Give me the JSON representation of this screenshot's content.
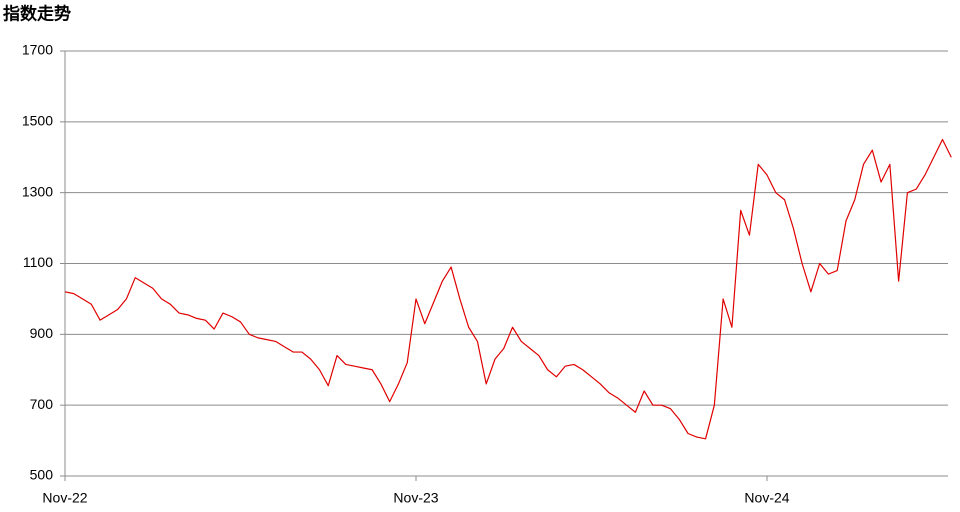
{
  "chart_data": {
    "type": "line",
    "title": "指数走势",
    "categories": [
      "Nov-22",
      null,
      null,
      null,
      null,
      null,
      null,
      null,
      null,
      null,
      null,
      null,
      null,
      null,
      null,
      null,
      null,
      null,
      null,
      null,
      null,
      null,
      null,
      null,
      null,
      null,
      null,
      null,
      null,
      null,
      null,
      null,
      null,
      null,
      null,
      null,
      null,
      null,
      null,
      null,
      "Nov-23",
      null,
      null,
      null,
      null,
      null,
      null,
      null,
      null,
      null,
      null,
      null,
      null,
      null,
      null,
      null,
      null,
      null,
      null,
      null,
      null,
      null,
      null,
      null,
      null,
      null,
      null,
      null,
      null,
      null,
      null,
      null,
      null,
      null,
      null,
      null,
      null,
      null,
      null,
      null,
      "Nov-24",
      null,
      null,
      null,
      null,
      null,
      null,
      null,
      null,
      null,
      null,
      null,
      null,
      null,
      null,
      null,
      null,
      null,
      null,
      null,
      null,
      null
    ],
    "values": [
      1020,
      1015,
      1000,
      985,
      940,
      955,
      970,
      1000,
      1060,
      1045,
      1030,
      1000,
      985,
      960,
      955,
      945,
      940,
      915,
      960,
      950,
      935,
      900,
      890,
      885,
      880,
      865,
      850,
      850,
      830,
      800,
      755,
      840,
      815,
      810,
      805,
      800,
      760,
      710,
      760,
      820,
      1000,
      930,
      990,
      1050,
      1090,
      1000,
      920,
      880,
      760,
      830,
      860,
      920,
      880,
      860,
      840,
      800,
      780,
      810,
      815,
      800,
      780,
      760,
      735,
      720,
      700,
      680,
      740,
      700,
      700,
      690,
      660,
      620,
      610,
      605,
      700,
      1000,
      920,
      1250,
      1180,
      1380,
      1350,
      1300,
      1280,
      1200,
      1100,
      1020,
      1100,
      1070,
      1080,
      1220,
      1280,
      1380,
      1420,
      1330,
      1380,
      1050,
      1300,
      1310,
      1350,
      1400,
      1450,
      1400
    ],
    "color": "#e00000",
    "ylim": [
      500,
      1700
    ],
    "yticks": [
      500,
      700,
      900,
      1100,
      1300,
      1500,
      1700
    ],
    "grid": true
  }
}
